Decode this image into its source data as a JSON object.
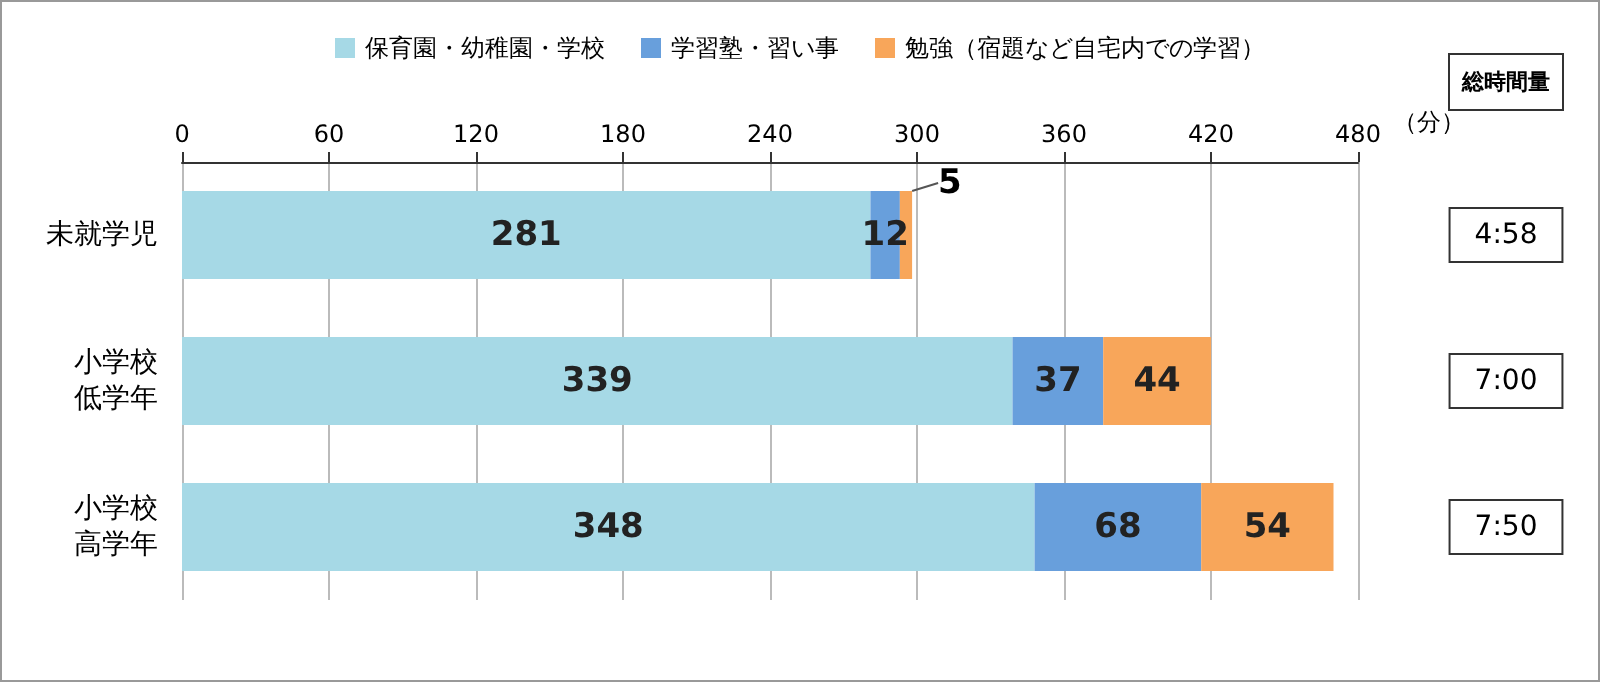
{
  "chart_data": {
    "type": "bar",
    "orientation": "horizontal",
    "stacked": true,
    "categories": [
      "未就学児",
      "小学校低学年",
      "小学校高学年"
    ],
    "series": [
      {
        "name": "保育園・幼稚園・学校",
        "color": "#a6d9e6",
        "values": [
          281,
          339,
          348
        ]
      },
      {
        "name": "学習塾・習い事",
        "color": "#689fdc",
        "values": [
          12,
          37,
          68
        ]
      },
      {
        "name": "勉強（宿題など自宅内での学習）",
        "color": "#f8a65a",
        "values": [
          5,
          44,
          54
        ]
      }
    ],
    "xlim": [
      0,
      480
    ],
    "xticks": [
      0,
      60,
      120,
      180,
      240,
      300,
      360,
      420,
      480
    ],
    "xlabel": "（分）",
    "data_labels": true,
    "annotations": [
      "総時間量",
      "4:58",
      "7:00",
      "7:50"
    ],
    "grid": "x",
    "legend": "top"
  }
}
